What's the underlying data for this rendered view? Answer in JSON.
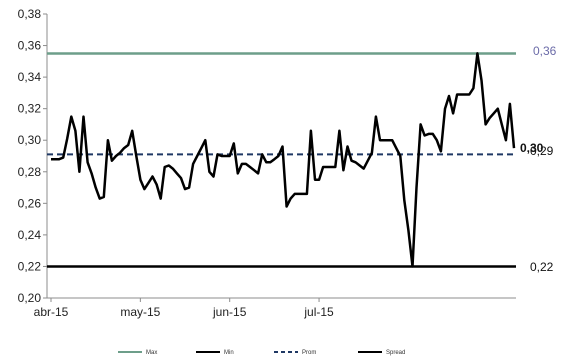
{
  "chart_data": {
    "type": "line",
    "title": "",
    "xlabel": "",
    "ylabel": "",
    "ylim": [
      0.2,
      0.38
    ],
    "y_ticks": [
      "0,20",
      "0,22",
      "0,24",
      "0,26",
      "0,28",
      "0,30",
      "0,32",
      "0,34",
      "0,36",
      "0,38"
    ],
    "x_ticks": [
      "abr-15",
      "may-15",
      "jun-15",
      "jul-15"
    ],
    "grid": false,
    "legend_position": "bottom",
    "series": [
      {
        "name": "Max",
        "color": "#6d9e8a",
        "style": "solid",
        "value": 0.355
      },
      {
        "name": "Min",
        "color": "#000000",
        "style": "solid",
        "value": 0.22
      },
      {
        "name": "Prom",
        "color": "#1f3864",
        "style": "dashed",
        "value": 0.291
      },
      {
        "name": "Spread",
        "color": "#000000",
        "style": "solid",
        "values": [
          0.288,
          0.288,
          0.288,
          0.289,
          0.301,
          0.315,
          0.306,
          0.28,
          0.315,
          0.286,
          0.279,
          0.27,
          0.263,
          0.264,
          0.3,
          0.287,
          0.29,
          0.292,
          0.295,
          0.297,
          0.306,
          0.29,
          0.275,
          0.269,
          0.273,
          0.277,
          0.272,
          0.263,
          0.283,
          0.284,
          0.282,
          0.279,
          0.276,
          0.269,
          0.27,
          0.285,
          0.29,
          0.295,
          0.3,
          0.28,
          0.277,
          0.291,
          0.29,
          0.29,
          0.29,
          0.298,
          0.279,
          0.285,
          0.285,
          0.283,
          0.281,
          0.279,
          0.291,
          0.286,
          0.286,
          0.288,
          0.29,
          0.296,
          0.258,
          0.263,
          0.266,
          0.266,
          0.266,
          0.266,
          0.306,
          0.275,
          0.275,
          0.283,
          0.283,
          0.283,
          0.283,
          0.306,
          0.281,
          0.296,
          0.287,
          0.286,
          0.284,
          0.282,
          0.287,
          0.292,
          0.315,
          0.3,
          0.3,
          0.3,
          0.3,
          0.295,
          0.29,
          0.262,
          0.243,
          0.22,
          0.27,
          0.31,
          0.303,
          0.304,
          0.304,
          0.3,
          0.293,
          0.32,
          0.328,
          0.317,
          0.329,
          0.329,
          0.329,
          0.329,
          0.333,
          0.355,
          0.338,
          0.31,
          0.314,
          0.317,
          0.32,
          0.31,
          0.3,
          0.323,
          0.295
        ]
      }
    ],
    "end_labels": {
      "max": "0,36",
      "min": "0,22",
      "prom": "0,29",
      "spread": "0,30"
    }
  }
}
